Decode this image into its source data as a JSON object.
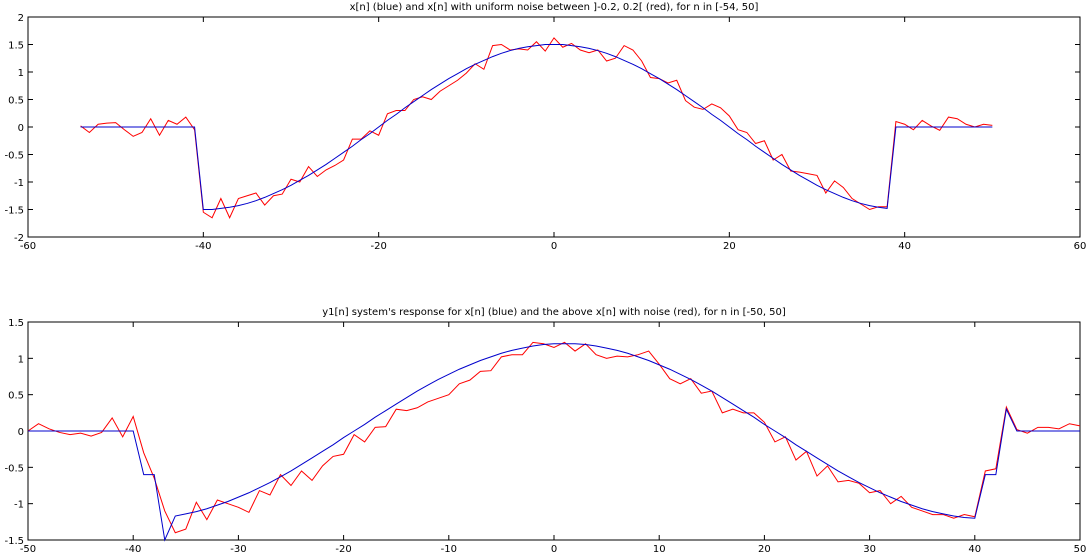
{
  "chart_data": [
    {
      "type": "line",
      "title": "x[n] (blue) and x[n] with uniform noise between ]-0.2, 0.2[ (red), for n in [-54, 50]",
      "x": [
        -54,
        -53,
        -52,
        -51,
        -50,
        -49,
        -48,
        -47,
        -46,
        -45,
        -44,
        -43,
        -42,
        -41,
        -40,
        -39,
        -38,
        -37,
        -36,
        -35,
        -34,
        -33,
        -32,
        -31,
        -30,
        -29,
        -28,
        -27,
        -26,
        -25,
        -24,
        -23,
        -22,
        -21,
        -20,
        -19,
        -18,
        -17,
        -16,
        -15,
        -14,
        -13,
        -12,
        -11,
        -10,
        -9,
        -8,
        -7,
        -6,
        -5,
        -4,
        -3,
        -2,
        -1,
        0,
        1,
        2,
        3,
        4,
        5,
        6,
        7,
        8,
        9,
        10,
        11,
        12,
        13,
        14,
        15,
        16,
        17,
        18,
        19,
        20,
        21,
        22,
        23,
        24,
        25,
        26,
        27,
        28,
        29,
        30,
        31,
        32,
        33,
        34,
        35,
        36,
        37,
        38,
        39,
        40,
        41,
        42,
        43,
        44,
        45,
        46,
        47,
        48,
        49,
        50
      ],
      "series": [
        {
          "color": "#ff0000",
          "values": [
            0.02,
            -0.1,
            0.05,
            0.07,
            0.08,
            -0.05,
            -0.17,
            -0.1,
            0.15,
            -0.15,
            0.12,
            0.05,
            0.18,
            -0.05,
            -1.55,
            -1.65,
            -1.3,
            -1.65,
            -1.3,
            -1.25,
            -1.2,
            -1.42,
            -1.25,
            -1.22,
            -0.95,
            -1.0,
            -0.72,
            -0.9,
            -0.78,
            -0.7,
            -0.6,
            -0.22,
            -0.22,
            -0.07,
            -0.15,
            0.24,
            0.3,
            0.3,
            0.5,
            0.55,
            0.5,
            0.65,
            0.75,
            0.85,
            0.98,
            1.15,
            1.05,
            1.48,
            1.5,
            1.4,
            1.42,
            1.4,
            1.55,
            1.38,
            1.62,
            1.45,
            1.52,
            1.4,
            1.35,
            1.4,
            1.2,
            1.25,
            1.48,
            1.4,
            1.2,
            0.9,
            0.88,
            0.8,
            0.85,
            0.48,
            0.36,
            0.32,
            0.42,
            0.35,
            0.2,
            -0.05,
            -0.1,
            -0.3,
            -0.25,
            -0.6,
            -0.5,
            -0.8,
            -0.82,
            -0.85,
            -0.88,
            -1.2,
            -0.98,
            -1.1,
            -1.3,
            -1.4,
            -1.5,
            -1.45,
            -1.45,
            0.1,
            0.05,
            -0.05,
            0.12,
            0.02,
            -0.06,
            0.18,
            0.15,
            0.05,
            0.0,
            0.05,
            0.03
          ]
        },
        {
          "color": "#0000cc",
          "values": [
            0,
            0,
            0,
            0,
            0,
            0,
            0,
            0,
            0,
            0,
            0,
            0,
            0,
            0,
            -1.5,
            -1.5,
            -1.48,
            -1.46,
            -1.43,
            -1.39,
            -1.34,
            -1.28,
            -1.21,
            -1.14,
            -1.06,
            -0.97,
            -0.88,
            -0.78,
            -0.68,
            -0.57,
            -0.46,
            -0.35,
            -0.23,
            -0.12,
            0,
            0.12,
            0.23,
            0.35,
            0.46,
            0.57,
            0.68,
            0.78,
            0.88,
            0.97,
            1.06,
            1.14,
            1.21,
            1.28,
            1.34,
            1.39,
            1.43,
            1.46,
            1.48,
            1.5,
            1.5,
            1.5,
            1.48,
            1.46,
            1.43,
            1.39,
            1.34,
            1.28,
            1.21,
            1.14,
            1.06,
            0.97,
            0.88,
            0.78,
            0.68,
            0.57,
            0.46,
            0.35,
            0.23,
            0.12,
            0,
            -0.12,
            -0.23,
            -0.35,
            -0.46,
            -0.57,
            -0.68,
            -0.78,
            -0.88,
            -0.97,
            -1.06,
            -1.14,
            -1.21,
            -1.28,
            -1.34,
            -1.39,
            -1.43,
            -1.46,
            -1.48,
            0,
            0,
            0,
            0,
            0,
            0,
            0,
            0,
            0,
            0,
            0,
            0
          ]
        }
      ],
      "xlim": [
        -60,
        60
      ],
      "xticks": [
        -60,
        -40,
        -20,
        0,
        20,
        40,
        60
      ],
      "ylim": [
        -2,
        2
      ],
      "yticks": [
        -2,
        -1.5,
        -1,
        -0.5,
        0,
        0.5,
        1,
        1.5,
        2
      ]
    },
    {
      "type": "line",
      "title": "y1[n] system's response for x[n] (blue) and the above x[n] with noise (red), for n in [-50, 50]",
      "x": [
        -50,
        -49,
        -48,
        -47,
        -46,
        -45,
        -44,
        -43,
        -42,
        -41,
        -40,
        -39,
        -38,
        -37,
        -36,
        -35,
        -34,
        -33,
        -32,
        -31,
        -30,
        -29,
        -28,
        -27,
        -26,
        -25,
        -24,
        -23,
        -22,
        -21,
        -20,
        -19,
        -18,
        -17,
        -16,
        -15,
        -14,
        -13,
        -12,
        -11,
        -10,
        -9,
        -8,
        -7,
        -6,
        -5,
        -4,
        -3,
        -2,
        -1,
        0,
        1,
        2,
        3,
        4,
        5,
        6,
        7,
        8,
        9,
        10,
        11,
        12,
        13,
        14,
        15,
        16,
        17,
        18,
        19,
        20,
        21,
        22,
        23,
        24,
        25,
        26,
        27,
        28,
        29,
        30,
        31,
        32,
        33,
        34,
        35,
        36,
        37,
        38,
        39,
        40,
        41,
        42,
        43,
        44,
        45,
        46,
        47,
        48,
        49,
        50
      ],
      "series": [
        {
          "color": "#ff0000",
          "values": [
            0,
            0.1,
            0.03,
            -0.02,
            -0.05,
            -0.03,
            -0.07,
            -0.02,
            0.18,
            -0.08,
            0.2,
            -0.3,
            -0.65,
            -1.1,
            -1.4,
            -1.35,
            -0.98,
            -1.22,
            -0.95,
            -1.0,
            -1.05,
            -1.12,
            -0.82,
            -0.88,
            -0.6,
            -0.75,
            -0.55,
            -0.68,
            -0.48,
            -0.35,
            -0.32,
            -0.05,
            -0.15,
            0.05,
            0.06,
            0.3,
            0.28,
            0.32,
            0.4,
            0.45,
            0.5,
            0.65,
            0.7,
            0.82,
            0.83,
            1.02,
            1.05,
            1.05,
            1.22,
            1.2,
            1.15,
            1.22,
            1.1,
            1.2,
            1.05,
            1.0,
            1.03,
            1.02,
            1.05,
            1.1,
            0.92,
            0.72,
            0.65,
            0.72,
            0.52,
            0.55,
            0.25,
            0.3,
            0.25,
            0.25,
            0.12,
            -0.15,
            -0.08,
            -0.4,
            -0.28,
            -0.62,
            -0.48,
            -0.7,
            -0.68,
            -0.72,
            -0.85,
            -0.82,
            -1.0,
            -0.9,
            -1.05,
            -1.1,
            -1.15,
            -1.15,
            -1.2,
            -1.15,
            -1.18,
            -0.55,
            -0.52,
            0.33,
            0.02,
            -0.03,
            0.05,
            0.05,
            0.03,
            0.1,
            0.07
          ]
        },
        {
          "color": "#0000cc",
          "values": [
            0,
            0,
            0,
            0,
            0,
            0,
            0,
            0,
            0,
            0,
            0,
            -0.6,
            -0.6,
            -1.5,
            -1.17,
            -1.14,
            -1.11,
            -1.07,
            -1.02,
            -0.97,
            -0.91,
            -0.85,
            -0.78,
            -0.71,
            -0.63,
            -0.55,
            -0.46,
            -0.37,
            -0.28,
            -0.19,
            -0.09,
            0,
            0.09,
            0.19,
            0.28,
            0.37,
            0.46,
            0.55,
            0.63,
            0.71,
            0.78,
            0.85,
            0.91,
            0.97,
            1.02,
            1.07,
            1.11,
            1.14,
            1.17,
            1.19,
            1.2,
            1.2,
            1.2,
            1.19,
            1.17,
            1.14,
            1.11,
            1.07,
            1.02,
            0.97,
            0.91,
            0.85,
            0.78,
            0.71,
            0.63,
            0.55,
            0.46,
            0.37,
            0.28,
            0.19,
            0.09,
            0,
            -0.09,
            -0.19,
            -0.28,
            -0.37,
            -0.46,
            -0.55,
            -0.63,
            -0.71,
            -0.78,
            -0.85,
            -0.91,
            -0.97,
            -1.02,
            -1.07,
            -1.11,
            -1.14,
            -1.17,
            -1.19,
            -1.2,
            -0.6,
            -0.6,
            0.3,
            0,
            0,
            0,
            0,
            0,
            0,
            0
          ]
        }
      ],
      "xlim": [
        -50,
        50
      ],
      "xticks": [
        -50,
        -40,
        -30,
        -20,
        -10,
        0,
        10,
        20,
        30,
        40,
        50
      ],
      "ylim": [
        -1.5,
        1.5
      ],
      "yticks": [
        -1.5,
        -1,
        -0.5,
        0,
        0.5,
        1,
        1.5
      ]
    }
  ]
}
